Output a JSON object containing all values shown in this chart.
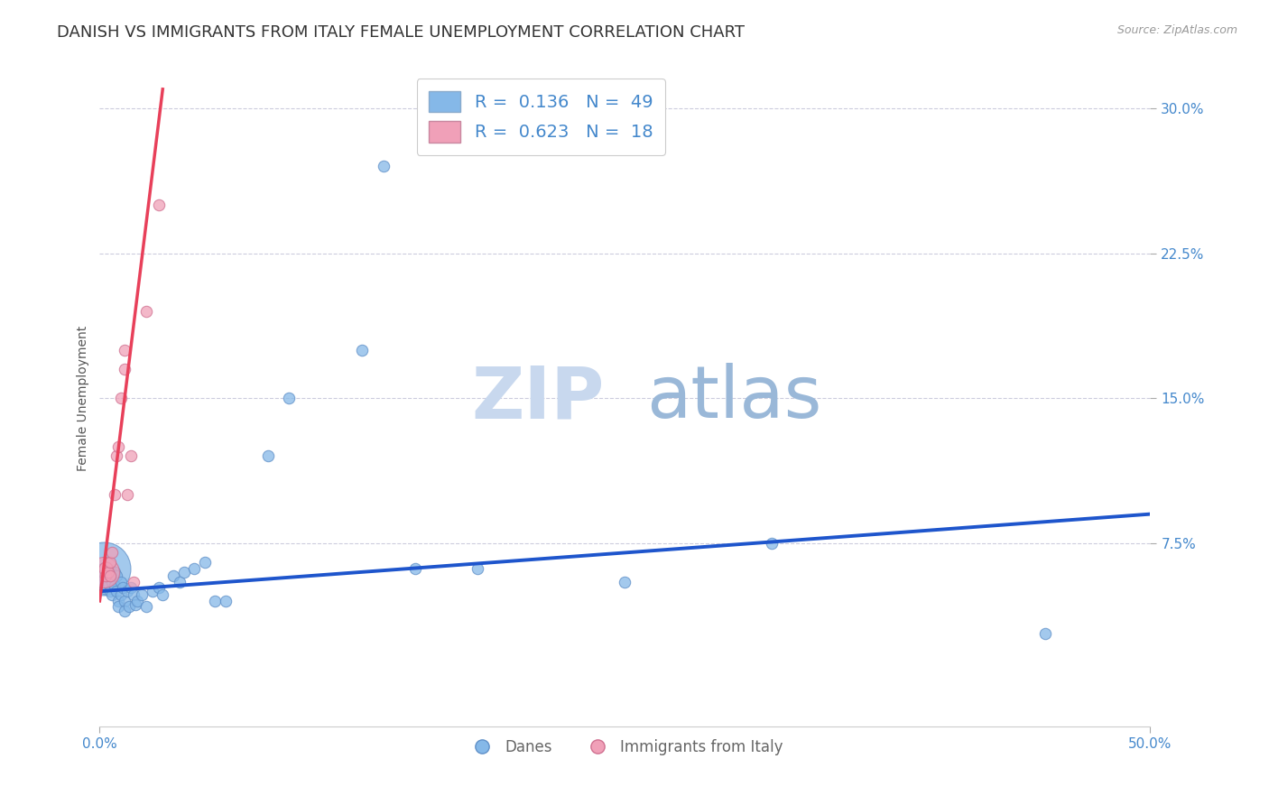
{
  "title": "DANISH VS IMMIGRANTS FROM ITALY FEMALE UNEMPLOYMENT CORRELATION CHART",
  "source": "Source: ZipAtlas.com",
  "ylabel": "Female Unemployment",
  "xlim": [
    0.0,
    0.5
  ],
  "ylim": [
    -0.02,
    0.32
  ],
  "yticks": [
    0.075,
    0.15,
    0.225,
    0.3
  ],
  "ytick_labels": [
    "7.5%",
    "15.0%",
    "22.5%",
    "30.0%"
  ],
  "xticks": [
    0.0,
    0.5
  ],
  "xtick_labels": [
    "0.0%",
    "50.0%"
  ],
  "title_color": "#333333",
  "title_fontsize": 13,
  "watermark_zip": "ZIP",
  "watermark_atlas": "atlas",
  "legend_R1": "0.136",
  "legend_N1": "49",
  "legend_R2": "0.623",
  "legend_N2": "18",
  "danes_color": "#85b8e8",
  "italy_color": "#f0a0b8",
  "danes_line_color": "#1e55cc",
  "italy_line_color": "#e8405a",
  "axis_tick_color": "#4488cc",
  "grid_color": "#ccccdd",
  "background_color": "#ffffff",
  "danes_points": [
    [
      0.002,
      0.062
    ],
    [
      0.002,
      0.058
    ],
    [
      0.003,
      0.06
    ],
    [
      0.003,
      0.055
    ],
    [
      0.003,
      0.052
    ],
    [
      0.004,
      0.058
    ],
    [
      0.004,
      0.054
    ],
    [
      0.005,
      0.06
    ],
    [
      0.005,
      0.05
    ],
    [
      0.006,
      0.055
    ],
    [
      0.006,
      0.048
    ],
    [
      0.007,
      0.06
    ],
    [
      0.007,
      0.053
    ],
    [
      0.008,
      0.058
    ],
    [
      0.008,
      0.05
    ],
    [
      0.009,
      0.045
    ],
    [
      0.009,
      0.042
    ],
    [
      0.01,
      0.055
    ],
    [
      0.01,
      0.048
    ],
    [
      0.011,
      0.052
    ],
    [
      0.012,
      0.045
    ],
    [
      0.012,
      0.04
    ],
    [
      0.013,
      0.05
    ],
    [
      0.014,
      0.042
    ],
    [
      0.015,
      0.052
    ],
    [
      0.016,
      0.048
    ],
    [
      0.017,
      0.043
    ],
    [
      0.018,
      0.045
    ],
    [
      0.02,
      0.048
    ],
    [
      0.022,
      0.042
    ],
    [
      0.025,
      0.05
    ],
    [
      0.028,
      0.052
    ],
    [
      0.03,
      0.048
    ],
    [
      0.035,
      0.058
    ],
    [
      0.038,
      0.055
    ],
    [
      0.04,
      0.06
    ],
    [
      0.045,
      0.062
    ],
    [
      0.05,
      0.065
    ],
    [
      0.055,
      0.045
    ],
    [
      0.06,
      0.045
    ],
    [
      0.08,
      0.12
    ],
    [
      0.09,
      0.15
    ],
    [
      0.125,
      0.175
    ],
    [
      0.135,
      0.27
    ],
    [
      0.15,
      0.062
    ],
    [
      0.18,
      0.062
    ],
    [
      0.25,
      0.055
    ],
    [
      0.32,
      0.075
    ],
    [
      0.45,
      0.028
    ]
  ],
  "danes_sizes": [
    1800,
    400,
    250,
    180,
    120,
    100,
    80,
    100,
    80,
    80,
    80,
    80,
    80,
    80,
    80,
    80,
    80,
    80,
    80,
    80,
    80,
    80,
    80,
    80,
    80,
    80,
    80,
    80,
    80,
    80,
    80,
    80,
    80,
    80,
    80,
    80,
    80,
    80,
    80,
    80,
    80,
    80,
    80,
    80,
    80,
    80,
    80,
    80,
    80
  ],
  "italy_points": [
    [
      0.002,
      0.06
    ],
    [
      0.003,
      0.062
    ],
    [
      0.003,
      0.058
    ],
    [
      0.004,
      0.06
    ],
    [
      0.005,
      0.065
    ],
    [
      0.005,
      0.058
    ],
    [
      0.006,
      0.07
    ],
    [
      0.007,
      0.1
    ],
    [
      0.008,
      0.12
    ],
    [
      0.009,
      0.125
    ],
    [
      0.01,
      0.15
    ],
    [
      0.012,
      0.175
    ],
    [
      0.012,
      0.165
    ],
    [
      0.013,
      0.1
    ],
    [
      0.015,
      0.12
    ],
    [
      0.016,
      0.055
    ],
    [
      0.022,
      0.195
    ],
    [
      0.028,
      0.25
    ]
  ],
  "italy_sizes": [
    600,
    120,
    80,
    80,
    80,
    80,
    80,
    80,
    80,
    80,
    80,
    80,
    80,
    80,
    80,
    80,
    80,
    80
  ],
  "danes_line_x": [
    0.0,
    0.5
  ],
  "danes_line_y": [
    0.05,
    0.09
  ],
  "italy_line_x": [
    0.0,
    0.03
  ],
  "italy_line_y": [
    0.045,
    0.31
  ]
}
